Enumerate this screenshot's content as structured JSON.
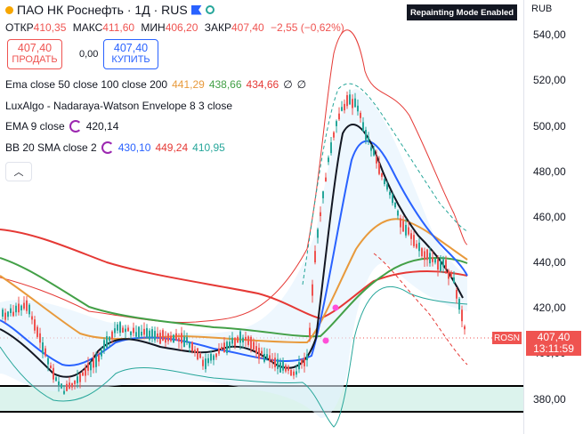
{
  "header": {
    "title": "ПАО НК Роснефть · 1Д · RUS",
    "repaint_badge": "Repainting Mode Enabled",
    "currency": "RUB"
  },
  "ohlc": {
    "open_label": "ОТКР",
    "open": "410,35",
    "high_label": "МАКС",
    "high": "411,60",
    "low_label": "МИН",
    "low": "406,20",
    "close_label": "ЗАКР",
    "close": "407,40",
    "change": "−2,55 (−0,62%)"
  },
  "trade": {
    "sell_price": "407,40",
    "sell_label": "ПРОДАТЬ",
    "spread": "0,00",
    "buy_price": "407,40",
    "buy_label": "КУПИТЬ"
  },
  "indicators": [
    {
      "name": "Ema close 50 close 100 close 200",
      "values": [
        "441,29",
        "438,66",
        "434,66",
        "∅",
        "∅"
      ],
      "colors": [
        "#e89a3c",
        "#43a047",
        "#e53935",
        "#131722",
        "#131722"
      ]
    },
    {
      "name": "LuxAlgo - Nadaraya-Watson Envelope 8 3 close",
      "values": []
    },
    {
      "name": "EMA 9 close",
      "values": [
        "420,14"
      ],
      "colors": [
        "#131722"
      ]
    },
    {
      "name": "BB 20 SMA close 2",
      "values": [
        "430,10",
        "449,24",
        "410,95"
      ],
      "colors": [
        "#2962ff",
        "#e53935",
        "#26a69a"
      ]
    }
  ],
  "price_scale": {
    "ticks": [
      "540,00",
      "520,00",
      "500,00",
      "480,00",
      "460,00",
      "440,00",
      "420,00",
      "400,00",
      "380,00"
    ],
    "last_price": "407,40",
    "countdown": "13:11:59",
    "symbol": "ROSN"
  },
  "colors": {
    "up": "#26a69a",
    "down": "#ef5350",
    "ema50": "#e89a3c",
    "ema100": "#43a047",
    "ema200": "#e53935",
    "ema9": "#131722",
    "bb_basis": "#2962ff"
  }
}
